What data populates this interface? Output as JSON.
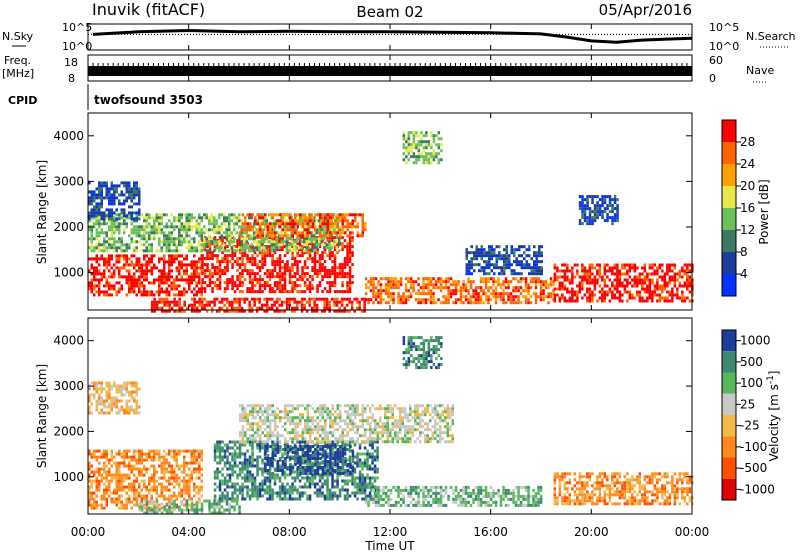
{
  "header": {
    "station": "Inuvik (fitACF)",
    "beam": "Beam 02",
    "date": "05/Apr/2016"
  },
  "panel_labels": {
    "nsky": "N.Sky",
    "nsearch": "N.Search",
    "freq_top": "Freq.",
    "freq_bottom": "[MHz]",
    "nave": "Nave",
    "cpid": "CPID",
    "cpid_value": "twofsound 3503"
  },
  "colors": {
    "power": [
      "#0033ff",
      "#1e3c9a",
      "#3a7a62",
      "#6cc05a",
      "#e8e84a",
      "#ffa000",
      "#ff6400",
      "#ff0000"
    ],
    "velocity": [
      "#1f3c9c",
      "#3f8a6e",
      "#56b85a",
      "#c8c8c8",
      "#f2b84a",
      "#ff8a1e",
      "#ff5000",
      "#e00000"
    ]
  },
  "chart_data": [
    {
      "type": "line",
      "title": "N.Sky / N.Search",
      "yticks_left": [
        "10^5",
        "10^0"
      ],
      "yticks_right": [
        "10^5",
        "10^0"
      ],
      "x_range_hours": [
        0,
        24
      ],
      "series": [
        {
          "name": "N.Sky",
          "x": [
            0.2,
            2,
            4,
            6,
            8,
            10,
            12,
            14,
            16,
            18,
            19,
            20,
            21,
            22,
            23,
            24
          ],
          "y": [
            0.6,
            0.7,
            0.75,
            0.7,
            0.72,
            0.7,
            0.7,
            0.68,
            0.66,
            0.62,
            0.5,
            0.35,
            0.3,
            0.38,
            0.42,
            0.45
          ]
        },
        {
          "name": "N.Search",
          "x": [
            0,
            24
          ],
          "y": [
            0.6,
            0.6
          ]
        }
      ]
    },
    {
      "type": "bar",
      "title": "Freq. [MHz] / Nave",
      "yticks_left": [
        "18",
        "8"
      ],
      "yticks_right": [
        "60",
        "0"
      ],
      "x_range_hours": [
        0,
        24
      ],
      "freq_band": [
        8,
        18
      ]
    },
    {
      "type": "heatmap",
      "ylabel": "Slant Range [km]",
      "xlabel": "Time UT",
      "x_ticks": [
        "00:00",
        "04:00",
        "08:00",
        "12:00",
        "16:00",
        "20:00",
        "00:00"
      ],
      "y_ticks": [
        1000,
        2000,
        3000,
        4000
      ],
      "y_range_km": [
        180,
        4500
      ],
      "colorbar": {
        "label": "Power [dB]",
        "ticks": [
          "4",
          "8",
          "12",
          "16",
          "20",
          "24",
          "28"
        ]
      },
      "regions": [
        {
          "t0": 0.0,
          "t1": 4.5,
          "r0": 500,
          "r1": 1400,
          "level": 7
        },
        {
          "t0": 4.5,
          "t1": 10.5,
          "r0": 600,
          "r1": 1800,
          "level": 7
        },
        {
          "t0": 2.5,
          "t1": 11.0,
          "r0": 180,
          "r1": 450,
          "level": 7
        },
        {
          "t0": 0.0,
          "t1": 10.0,
          "r0": 1500,
          "r1": 2300,
          "level": 3
        },
        {
          "t0": 6.0,
          "t1": 11.0,
          "r0": 1800,
          "r1": 2300,
          "level": 6
        },
        {
          "t0": 11.0,
          "t1": 18.5,
          "r0": 350,
          "r1": 900,
          "level": 6
        },
        {
          "t0": 18.5,
          "t1": 24.0,
          "r0": 400,
          "r1": 1200,
          "level": 7
        },
        {
          "t0": 12.5,
          "t1": 14.0,
          "r0": 3400,
          "r1": 4100,
          "level": 3
        },
        {
          "t0": 0.0,
          "t1": 2.0,
          "r0": 2200,
          "r1": 3000,
          "level": 1
        },
        {
          "t0": 15.0,
          "t1": 18.0,
          "r0": 1000,
          "r1": 1600,
          "level": 1
        },
        {
          "t0": 19.5,
          "t1": 21.0,
          "r0": 2100,
          "r1": 2700,
          "level": 1
        }
      ]
    },
    {
      "type": "heatmap",
      "ylabel": "Slant Range [km]",
      "xlabel": "Time UT",
      "x_ticks": [
        "00:00",
        "04:00",
        "08:00",
        "12:00",
        "16:00",
        "20:00",
        "00:00"
      ],
      "y_ticks": [
        1000,
        2000,
        3000,
        4000
      ],
      "y_range_km": [
        180,
        4500
      ],
      "colorbar": {
        "label": "Velocity [m s^-1]",
        "ticks": [
          "1000",
          "500",
          "100",
          "25",
          "-25",
          "-100",
          "-500",
          "-1000"
        ]
      },
      "regions": [
        {
          "t0": 0.0,
          "t1": 4.5,
          "r0": 300,
          "r1": 1600,
          "level": 5
        },
        {
          "t0": 5.0,
          "t1": 11.5,
          "r0": 500,
          "r1": 1800,
          "level": 1
        },
        {
          "t0": 7.0,
          "t1": 10.5,
          "r0": 1100,
          "r1": 1700,
          "level": 0
        },
        {
          "t0": 6.0,
          "t1": 14.5,
          "r0": 1800,
          "r1": 2600,
          "level": 3
        },
        {
          "t0": 11.0,
          "t1": 18.0,
          "r0": 400,
          "r1": 800,
          "level": 2
        },
        {
          "t0": 18.5,
          "t1": 24.0,
          "r0": 400,
          "r1": 1100,
          "level": 5
        },
        {
          "t0": 2.0,
          "t1": 6.0,
          "r0": 200,
          "r1": 500,
          "level": 2
        },
        {
          "t0": 12.5,
          "t1": 14.0,
          "r0": 3400,
          "r1": 4100,
          "level": 1
        },
        {
          "t0": 0.0,
          "t1": 2.0,
          "r0": 2400,
          "r1": 3100,
          "level": 4
        }
      ]
    }
  ]
}
